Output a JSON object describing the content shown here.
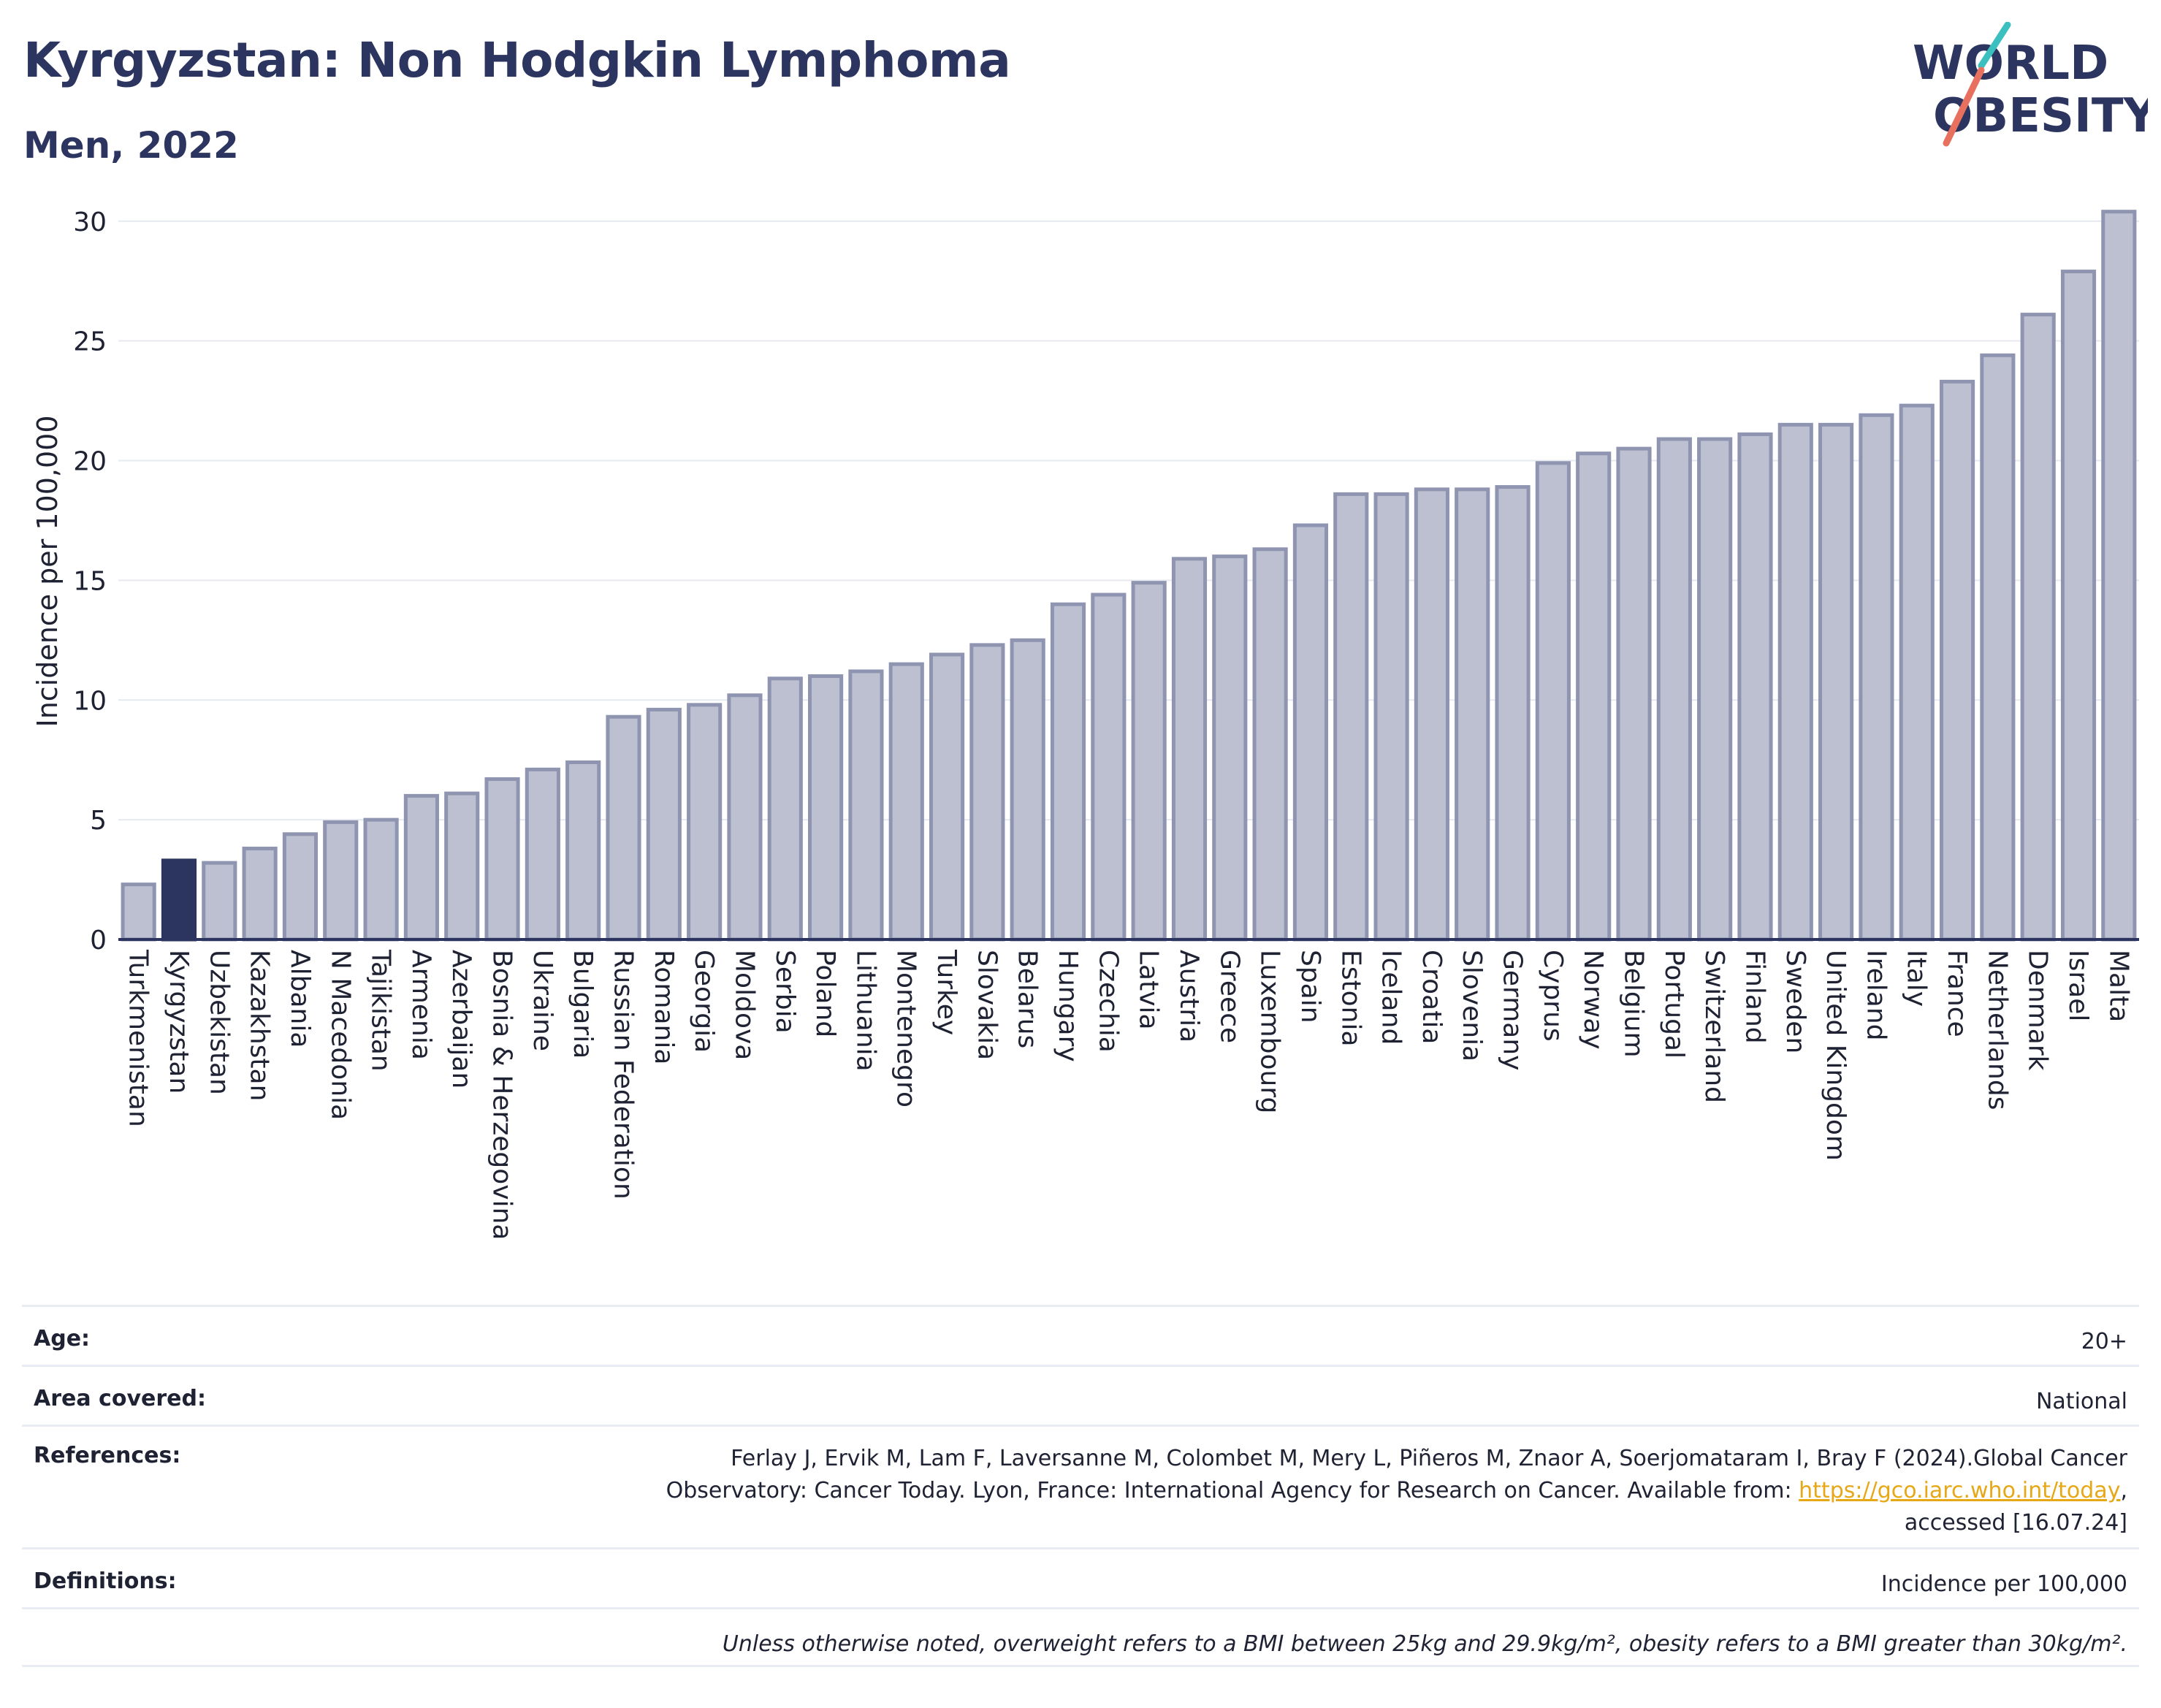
{
  "header": {
    "title": "Kyrgyzstan: Non Hodgkin Lymphoma",
    "subtitle": "Men, 2022"
  },
  "logo": {
    "line1": "WORLD",
    "line2": "OBESITY",
    "colors": {
      "text": "#2c3560",
      "slash_teal": "#3bbfbf",
      "slash_red": "#e8705f"
    }
  },
  "chart_data": {
    "type": "bar",
    "ylabel": "Incidence per 100,000",
    "xlabel": "",
    "ylim": [
      0,
      31
    ],
    "yticks": [
      0,
      5,
      10,
      15,
      20,
      25,
      30
    ],
    "grid": true,
    "highlight": "Kyrgyzstan",
    "colors": {
      "bar": "#bcc0d0",
      "bar_edge": "#8f95b0",
      "highlight": "#2c3560",
      "grid": "#e6e9f0",
      "axis": "#2c3560"
    },
    "categories": [
      "Turkmenistan",
      "Kyrgyzstan",
      "Uzbekistan",
      "Kazakhstan",
      "Albania",
      "N Macedonia",
      "Tajikistan",
      "Armenia",
      "Azerbaijan",
      "Bosnia & Herzegovina",
      "Ukraine",
      "Bulgaria",
      "Russian Federation",
      "Romania",
      "Georgia",
      "Moldova",
      "Serbia",
      "Poland",
      "Lithuania",
      "Montenegro",
      "Turkey",
      "Slovakia",
      "Belarus",
      "Hungary",
      "Czechia",
      "Latvia",
      "Austria",
      "Greece",
      "Luxembourg",
      "Spain",
      "Estonia",
      "Iceland",
      "Croatia",
      "Slovenia",
      "Germany",
      "Cyprus",
      "Norway",
      "Belgium",
      "Portugal",
      "Switzerland",
      "Finland",
      "Sweden",
      "United Kingdom",
      "Ireland",
      "Italy",
      "France",
      "Netherlands",
      "Denmark",
      "Israel",
      "Malta"
    ],
    "values": [
      2.3,
      3.3,
      3.2,
      3.8,
      4.4,
      4.9,
      5.0,
      6.0,
      6.1,
      6.7,
      7.1,
      7.4,
      9.3,
      9.6,
      9.8,
      10.2,
      10.9,
      11.0,
      11.2,
      11.5,
      11.9,
      12.3,
      12.5,
      14.0,
      14.4,
      14.9,
      15.9,
      16.0,
      16.3,
      17.3,
      18.6,
      18.6,
      18.8,
      18.8,
      18.9,
      19.9,
      20.3,
      20.5,
      20.9,
      20.9,
      21.1,
      21.5,
      21.5,
      21.9,
      22.3,
      23.3,
      24.4,
      26.1,
      27.9,
      30.4
    ]
  },
  "meta": {
    "age_label": "Age:",
    "age_value": "20+",
    "area_label": "Area covered:",
    "area_value": "National",
    "references_label": "References:",
    "references_line1": "Ferlay J, Ervik M, Lam F, Laversanne M, Colombet M, Mery L, Piñeros M, Znaor A, Soerjomataram I, Bray F (2024).Global Cancer",
    "references_line2_prefix": "Observatory: Cancer Today. Lyon, France: International Agency for Research on Cancer. Available from: ",
    "references_link": "https://gco.iarc.who.int/today",
    "references_line2_suffix": ",",
    "references_line3": "accessed [16.07.24]",
    "definitions_label": "Definitions:",
    "definitions_value": "Incidence per 100,000",
    "note": "Unless otherwise noted, overweight refers to a BMI between 25kg and 29.9kg/m², obesity refers to a BMI greater than 30kg/m²."
  }
}
